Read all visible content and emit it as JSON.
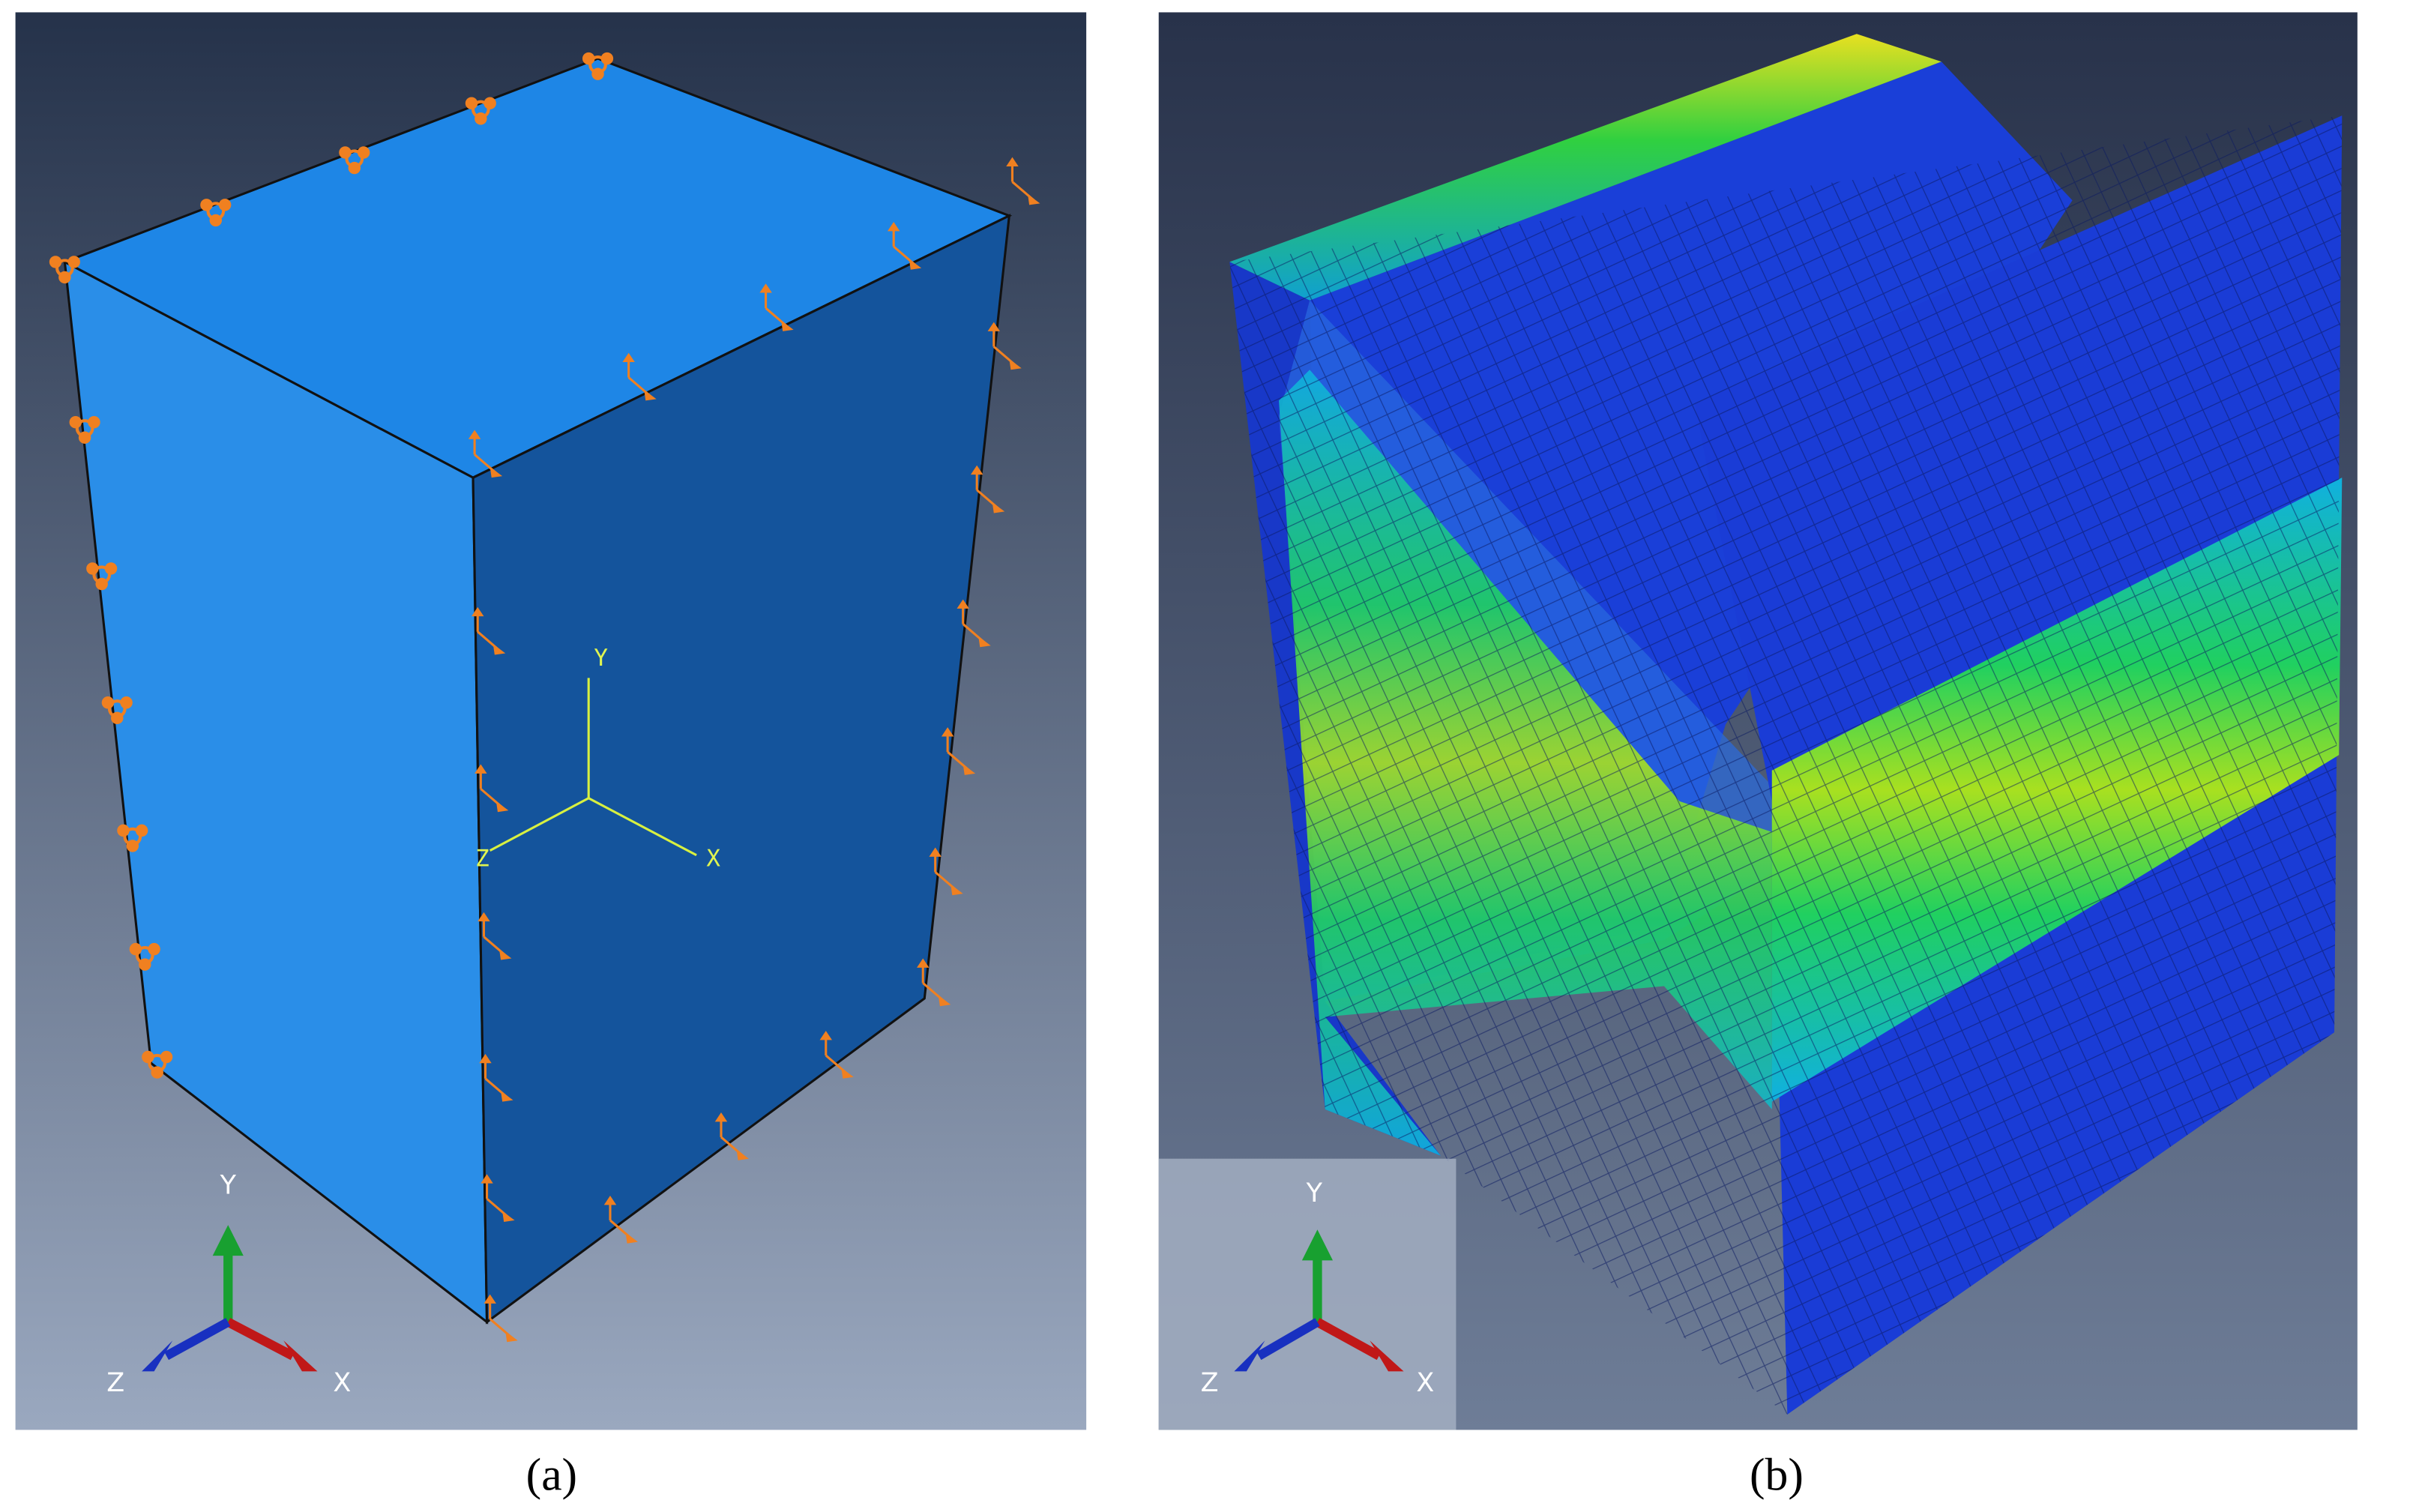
{
  "panels": [
    {
      "caption": "(a)",
      "csys": {
        "y": "Y",
        "x": "X",
        "z": "Z"
      },
      "triad": {
        "y": "Y",
        "z": "Z",
        "x": "X"
      }
    },
    {
      "caption": "(b)",
      "triad": {
        "y": "Y",
        "z": "Z",
        "x": "X"
      }
    }
  ]
}
